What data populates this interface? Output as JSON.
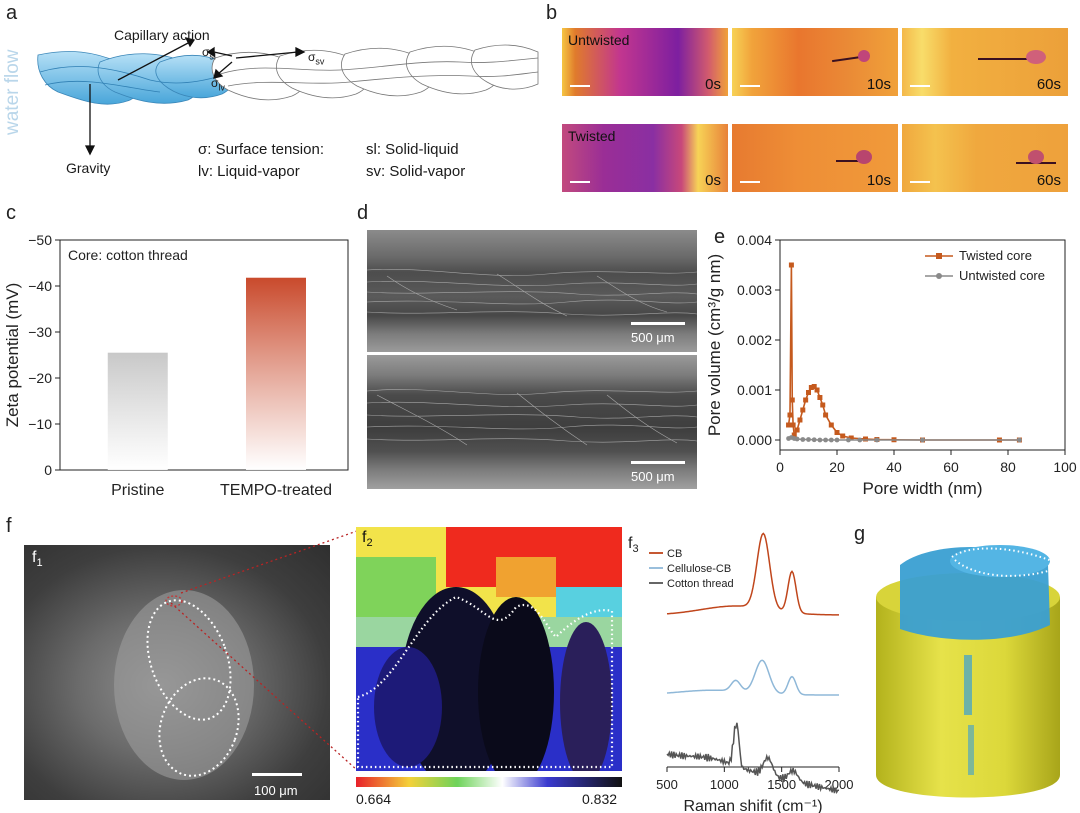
{
  "panel_labels": {
    "a": "a",
    "b": "b",
    "c": "c",
    "d": "d",
    "e": "e",
    "f": "f",
    "g": "g",
    "f1": "f",
    "f2": "f",
    "f3": "f",
    "sub1": "1",
    "sub2": "2",
    "sub3": "3"
  },
  "panel_a": {
    "water_flow": "water flow",
    "capillary": "Capillary action",
    "gravity": "Gravity",
    "sigma_sl": "σsl",
    "sigma_sv": "σsv",
    "sigma_lv": "σlv",
    "sigma_sl_main": "σ",
    "sigma_sl_sub": "sl",
    "sigma_sv_main": "σ",
    "sigma_sv_sub": "sv",
    "sigma_lv_main": "σ",
    "sigma_lv_sub": "lv",
    "legend": {
      "l1": "σ: Surface tension:",
      "r1": "sl: Solid-liquid",
      "l2": "lv: Liquid-vapor",
      "r2": "sv: Solid-vapor"
    }
  },
  "panel_b": {
    "rows": [
      {
        "tag": "Untwisted",
        "times": [
          "0s",
          "10s",
          "60s"
        ]
      },
      {
        "tag": "Twisted",
        "times": [
          "0s",
          "10s",
          "60s"
        ]
      }
    ]
  },
  "panel_c": {
    "inner_label": "Core: cotton thread"
  },
  "panel_d": {
    "scale_top": "500 μm",
    "scale_bottom": "500 μm"
  },
  "panel_f": {
    "f1_scale": "100 μm",
    "colorbar_min": "0.664",
    "colorbar_max": "0.832"
  },
  "chart_data": [
    {
      "panel": "c",
      "type": "bar",
      "categories": [
        "Pristine",
        "TEMPO-treated"
      ],
      "values": [
        -25.5,
        -41.8
      ],
      "ylabel": "Zeta potential (mV)",
      "ylim": [
        0,
        -50
      ],
      "yticks": [
        "0",
        "-10",
        "-20",
        "-30",
        "-40",
        "-50"
      ],
      "colors": [
        "#c8c8c8",
        "#c94a2c"
      ],
      "annotation": "Core: cotton thread"
    },
    {
      "panel": "e",
      "type": "line",
      "xlabel": "Pore width (nm)",
      "ylabel": "Pore volume (cm³/g nm)",
      "xlim": [
        0,
        100
      ],
      "ylim": [
        -0.0002,
        0.004
      ],
      "xticks": [
        "0",
        "20",
        "40",
        "60",
        "80",
        "100"
      ],
      "yticks": [
        "0.000",
        "0.001",
        "0.002",
        "0.003",
        "0.004"
      ],
      "legend_position": "top-right",
      "series": [
        {
          "name": "Twisted core",
          "color": "#c55a1e",
          "x": [
            3.0,
            3.5,
            4.0,
            4.3,
            4.6,
            5.0,
            6.0,
            7.0,
            8.0,
            9.0,
            10.0,
            11.0,
            12.0,
            13.0,
            14.0,
            15.0,
            16.0,
            18.0,
            20.0,
            22.0,
            25.0,
            30.0,
            34.0,
            40.0,
            50.0,
            77.0,
            84.0
          ],
          "y": [
            0.0003,
            0.0005,
            0.0035,
            0.0008,
            0.0003,
            0.0001,
            0.0002,
            0.0004,
            0.0006,
            0.0008,
            0.00095,
            0.00105,
            0.00107,
            0.001,
            0.00085,
            0.0007,
            0.0005,
            0.0003,
            0.00015,
            8e-05,
            4e-05,
            2e-05,
            1e-05,
            5e-06,
            0.0,
            0.0,
            0.0
          ]
        },
        {
          "name": "Untwisted core",
          "color": "#8a8a8a",
          "x": [
            3.0,
            4.0,
            5.0,
            6.0,
            8.0,
            10.0,
            12.0,
            14.0,
            16.0,
            18.0,
            20.0,
            24.0,
            28.0,
            34.0,
            50.0,
            84.0
          ],
          "y": [
            3e-05,
            5e-05,
            3e-05,
            2e-05,
            1e-05,
            1e-05,
            5e-06,
            0.0,
            0.0,
            0.0,
            0.0,
            0.0,
            0.0,
            0.0,
            0.0,
            0.0
          ]
        }
      ]
    },
    {
      "panel": "f3",
      "type": "line",
      "xlabel": "Raman shifit (cm⁻¹)",
      "xlim": [
        500,
        2000
      ],
      "xticks": [
        "500",
        "1000",
        "1500",
        "2000"
      ],
      "legend_position": "top-left",
      "series": [
        {
          "name": "CB",
          "color": "#c0461c"
        },
        {
          "name": "Cellulose-CB",
          "color": "#8fb8d8"
        },
        {
          "name": "Cotton thread",
          "color": "#555555"
        }
      ]
    }
  ]
}
